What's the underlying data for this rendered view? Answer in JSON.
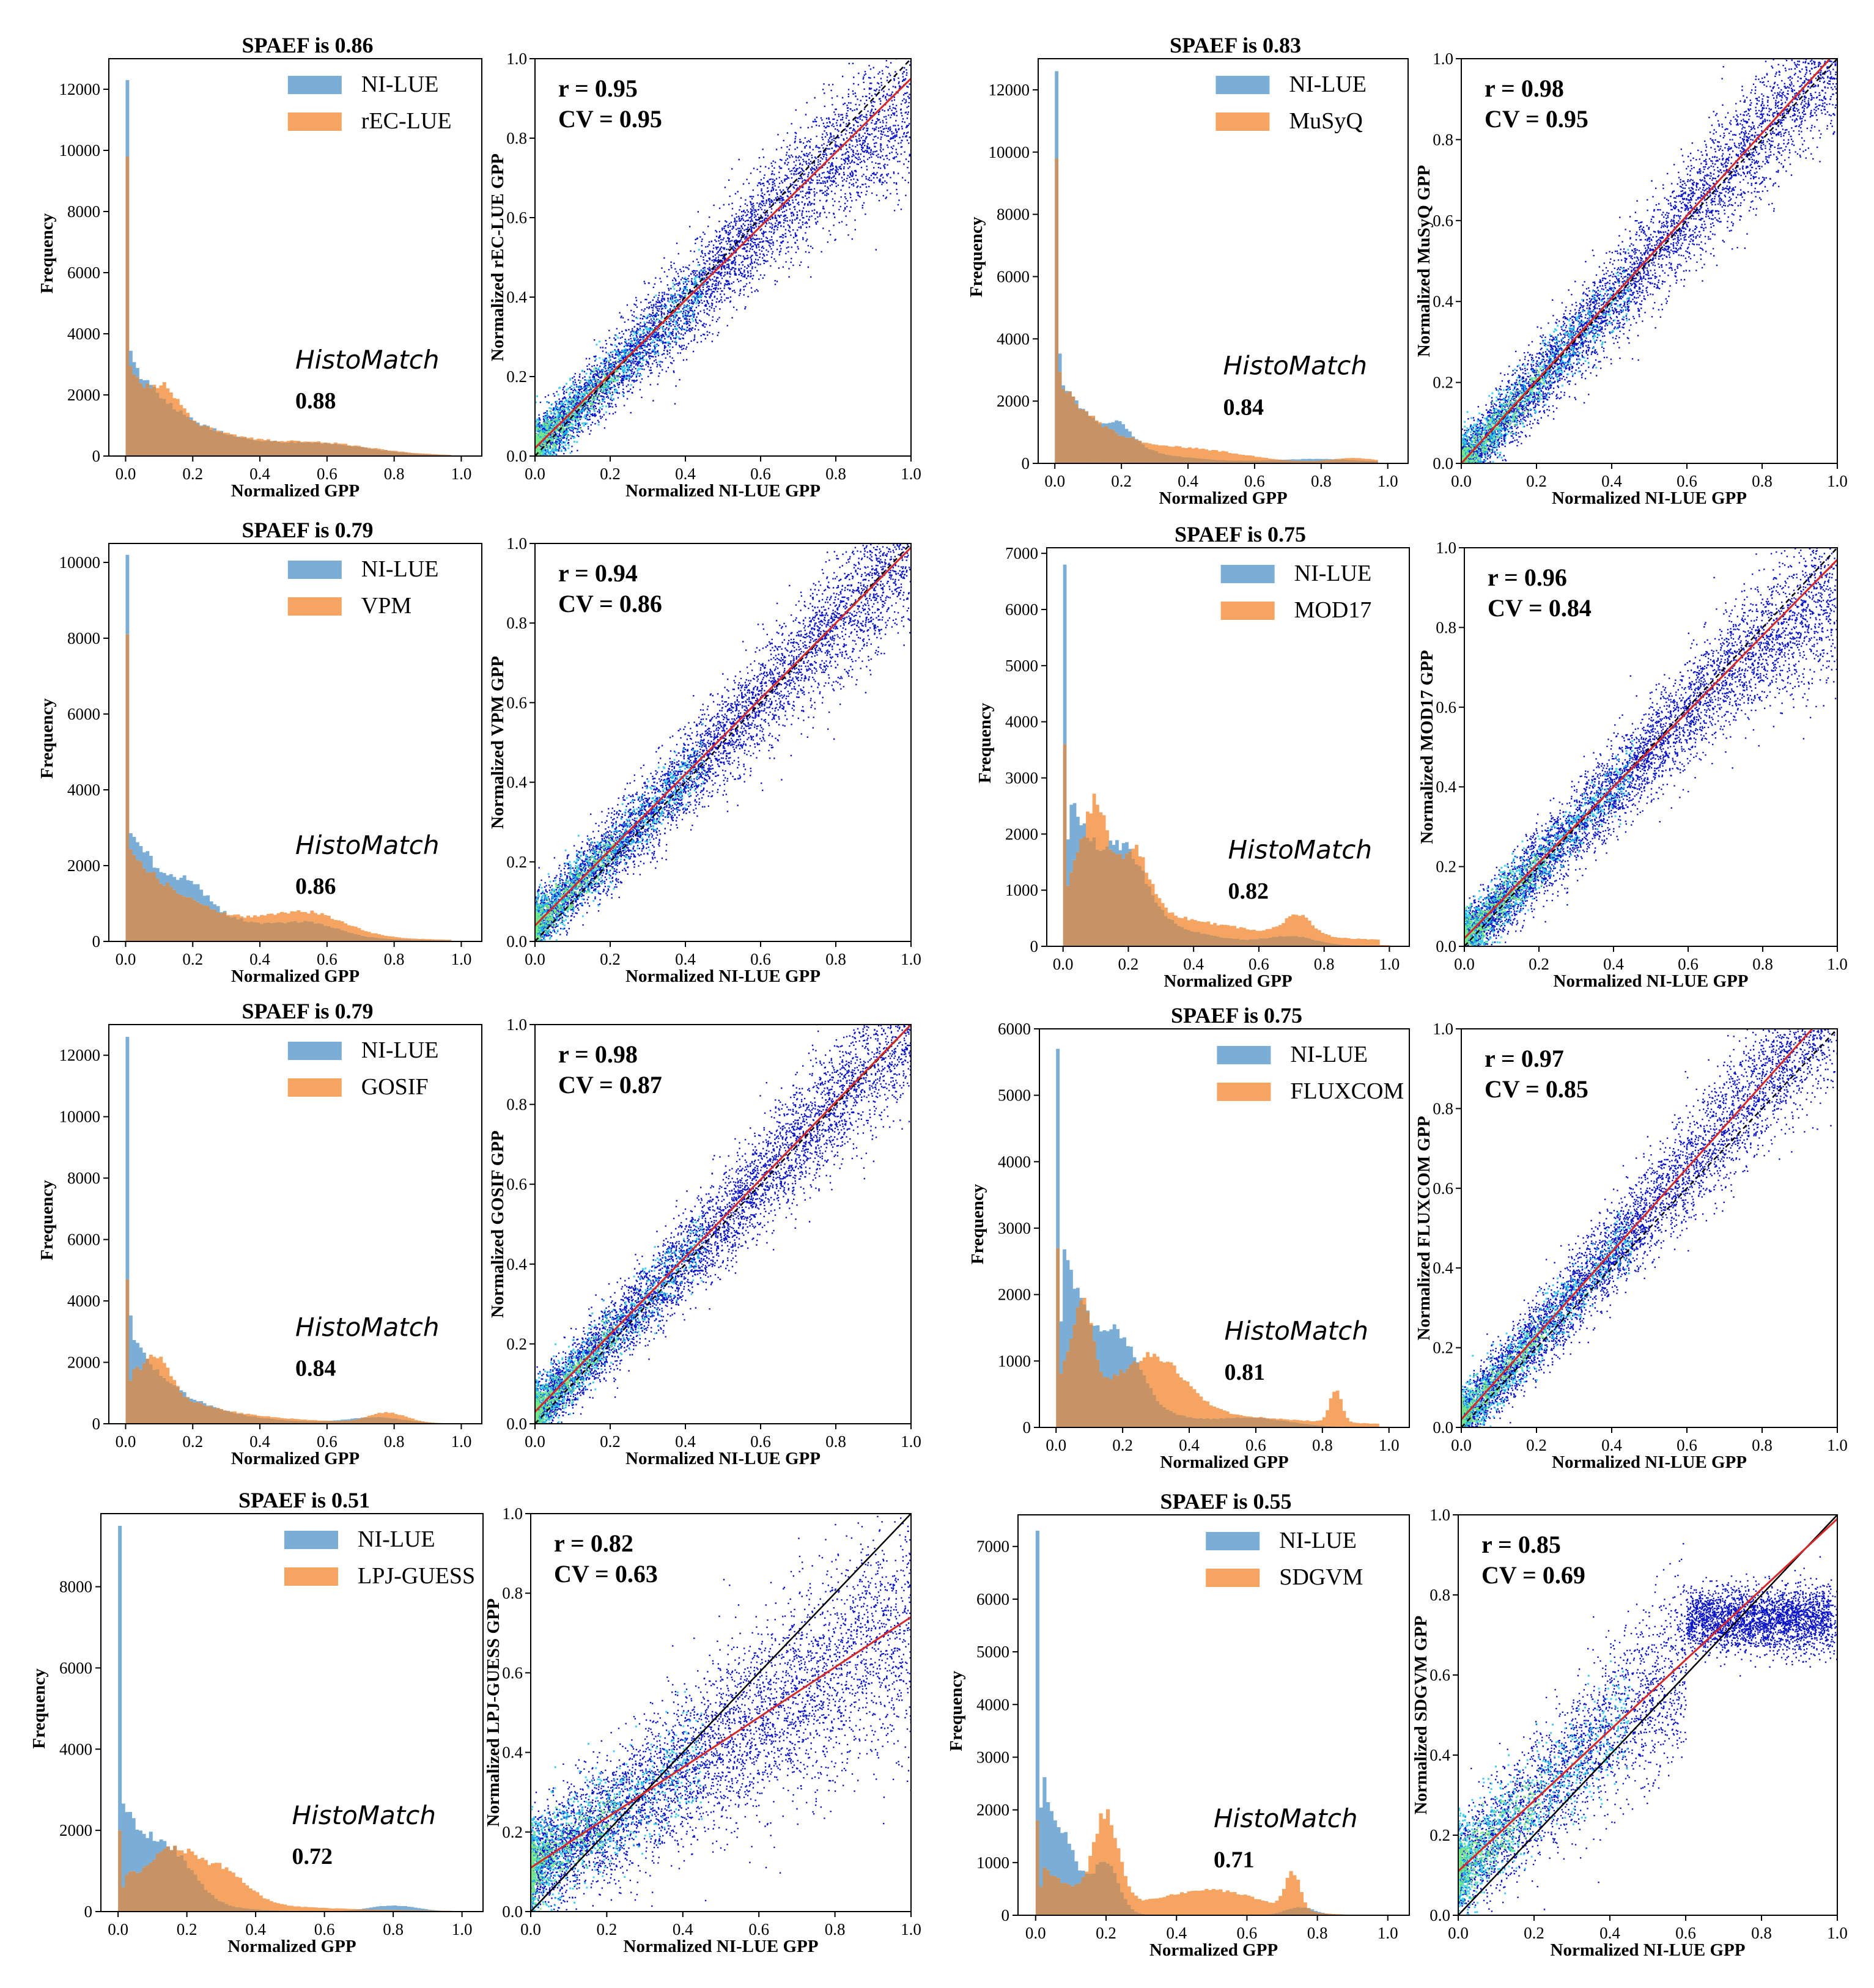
{
  "colors": {
    "ni_lue": "#7aaed6",
    "model": "#f6a461",
    "overlap": "#c89364",
    "fit_line": "#d62728",
    "one_to_one": "#000000",
    "scatter": "#0a14c8",
    "density_high": "#7ef07a",
    "density_mid": "#20c8e8"
  },
  "chart_data": [
    {
      "id": "rec-lue",
      "type": "bar",
      "title": "SPAEF is 0.86",
      "histogram": {
        "series": [
          {
            "name": "NI-LUE"
          },
          {
            "name": "rEC-LUE"
          }
        ],
        "xlabel": "Normalized GPP",
        "ylabel": "Frequency",
        "xlim": [
          0,
          1.0
        ],
        "ylim": [
          0,
          13000
        ],
        "xticks": [
          "0.0",
          "0.2",
          "0.4",
          "0.6",
          "0.8",
          "1.0"
        ],
        "yticks": [
          0,
          2000,
          4000,
          6000,
          8000,
          10000,
          12000
        ],
        "peak_ni": 12300,
        "peak_model": 9800,
        "label": "HistoMatch",
        "value": "0.88"
      },
      "scatter": {
        "type": "scatter",
        "xlabel": "Normalized NI-LUE GPP",
        "ylabel": "Normalized rEC-LUE GPP",
        "xlim": [
          0,
          1.0
        ],
        "ylim": [
          0,
          1.0
        ],
        "ticks": [
          "0.0",
          "0.2",
          "0.4",
          "0.6",
          "0.8",
          "1.0"
        ],
        "r": "r = 0.95",
        "cv": "CV = 0.95",
        "fit": {
          "slope": 0.93,
          "intercept": 0.02
        }
      }
    },
    {
      "id": "musyq",
      "type": "bar",
      "title": "SPAEF is 0.83",
      "histogram": {
        "series": [
          {
            "name": "NI-LUE"
          },
          {
            "name": "MuSyQ"
          }
        ],
        "xlabel": "Normalized GPP",
        "ylabel": "Frequency",
        "xlim": [
          0,
          1.0
        ],
        "ylim": [
          0,
          13000
        ],
        "xticks": [
          "0.0",
          "0.2",
          "0.4",
          "0.6",
          "0.8",
          "1.0"
        ],
        "yticks": [
          0,
          2000,
          4000,
          6000,
          8000,
          10000,
          12000
        ],
        "peak_ni": 12600,
        "peak_model": 9800,
        "label": "HistoMatch",
        "value": "0.84"
      },
      "scatter": {
        "type": "scatter",
        "xlabel": "Normalized NI-LUE GPP",
        "ylabel": "Normalized MuSyQ GPP",
        "xlim": [
          0,
          1.0
        ],
        "ylim": [
          0,
          1.0
        ],
        "ticks": [
          "0.0",
          "0.2",
          "0.4",
          "0.6",
          "0.8",
          "1.0"
        ],
        "r": "r = 0.98",
        "cv": "CV = 0.95",
        "fit": {
          "slope": 1.02,
          "intercept": 0.0
        }
      }
    },
    {
      "id": "vpm",
      "type": "bar",
      "title": "SPAEF is 0.79",
      "histogram": {
        "series": [
          {
            "name": "NI-LUE"
          },
          {
            "name": "VPM"
          }
        ],
        "xlabel": "Normalized GPP",
        "ylabel": "Frequency",
        "xlim": [
          0,
          1.0
        ],
        "ylim": [
          0,
          10500
        ],
        "xticks": [
          "0.0",
          "0.2",
          "0.4",
          "0.6",
          "0.8",
          "1.0"
        ],
        "yticks": [
          0,
          2000,
          4000,
          6000,
          8000,
          10000
        ],
        "peak_ni": 10200,
        "peak_model": 8100,
        "label": "HistoMatch",
        "value": "0.86"
      },
      "scatter": {
        "type": "scatter",
        "xlabel": "Normalized NI-LUE GPP",
        "ylabel": "Normalized VPM GPP",
        "xlim": [
          0,
          1.0
        ],
        "ylim": [
          0,
          1.0
        ],
        "ticks": [
          "0.0",
          "0.2",
          "0.4",
          "0.6",
          "0.8",
          "1.0"
        ],
        "r": "r = 0.94",
        "cv": "CV = 0.86",
        "fit": {
          "slope": 0.95,
          "intercept": 0.04
        }
      }
    },
    {
      "id": "mod17",
      "type": "bar",
      "title": "SPAEF is 0.75",
      "histogram": {
        "series": [
          {
            "name": "NI-LUE"
          },
          {
            "name": "MOD17"
          }
        ],
        "xlabel": "Normalized GPP",
        "ylabel": "Frequency",
        "xlim": [
          0,
          1.0
        ],
        "ylim": [
          0,
          7100
        ],
        "xticks": [
          "0.0",
          "0.2",
          "0.4",
          "0.6",
          "0.8",
          "1.0"
        ],
        "yticks": [
          0,
          1000,
          2000,
          3000,
          4000,
          5000,
          6000,
          7000
        ],
        "peak_ni": 6800,
        "peak_model": 3600,
        "label": "HistoMatch",
        "value": "0.82"
      },
      "scatter": {
        "type": "scatter",
        "xlabel": "Normalized NI-LUE GPP",
        "ylabel": "Normalized MOD17 GPP",
        "xlim": [
          0,
          1.0
        ],
        "ylim": [
          0,
          1.0
        ],
        "ticks": [
          "0.0",
          "0.2",
          "0.4",
          "0.6",
          "0.8",
          "1.0"
        ],
        "r": "r = 0.96",
        "cv": "CV = 0.84",
        "fit": {
          "slope": 0.95,
          "intercept": 0.02
        }
      }
    },
    {
      "id": "gosif",
      "type": "bar",
      "title": "SPAEF is 0.79",
      "histogram": {
        "series": [
          {
            "name": "NI-LUE"
          },
          {
            "name": "GOSIF"
          }
        ],
        "xlabel": "Normalized GPP",
        "ylabel": "Frequency",
        "xlim": [
          0,
          1.0
        ],
        "ylim": [
          0,
          13000
        ],
        "xticks": [
          "0.0",
          "0.2",
          "0.4",
          "0.6",
          "0.8",
          "1.0"
        ],
        "yticks": [
          0,
          2000,
          4000,
          6000,
          8000,
          10000,
          12000
        ],
        "peak_ni": 12600,
        "peak_model": 4700,
        "label": "HistoMatch",
        "value": "0.84"
      },
      "scatter": {
        "type": "scatter",
        "xlabel": "Normalized NI-LUE GPP",
        "ylabel": "Normalized GOSIF GPP",
        "xlim": [
          0,
          1.0
        ],
        "ylim": [
          0,
          1.0
        ],
        "ticks": [
          "0.0",
          "0.2",
          "0.4",
          "0.6",
          "0.8",
          "1.0"
        ],
        "r": "r = 0.98",
        "cv": "CV = 0.87",
        "fit": {
          "slope": 0.97,
          "intercept": 0.03
        }
      }
    },
    {
      "id": "fluxcom",
      "type": "bar",
      "title": "SPAEF is 0.75",
      "histogram": {
        "series": [
          {
            "name": "NI-LUE"
          },
          {
            "name": "FLUXCOM"
          }
        ],
        "xlabel": "Normalized GPP",
        "ylabel": "Frequency",
        "xlim": [
          0,
          1.0
        ],
        "ylim": [
          0,
          6000
        ],
        "xticks": [
          "0.0",
          "0.2",
          "0.4",
          "0.6",
          "0.8",
          "1.0"
        ],
        "yticks": [
          0,
          1000,
          2000,
          3000,
          4000,
          5000,
          6000
        ],
        "peak_ni": 5700,
        "peak_model": 2700,
        "label": "HistoMatch",
        "value": "0.81"
      },
      "scatter": {
        "type": "scatter",
        "xlabel": "Normalized NI-LUE GPP",
        "ylabel": "Normalized FLUXCOM GPP",
        "xlim": [
          0,
          1.0
        ],
        "ylim": [
          0,
          1.0
        ],
        "ticks": [
          "0.0",
          "0.2",
          "0.4",
          "0.6",
          "0.8",
          "1.0"
        ],
        "r": "r = 0.97",
        "cv": "CV = 0.85",
        "fit": {
          "slope": 1.05,
          "intercept": 0.02
        }
      }
    },
    {
      "id": "lpj-guess",
      "type": "bar",
      "title": "SPAEF is 0.51",
      "histogram": {
        "series": [
          {
            "name": "NI-LUE"
          },
          {
            "name": "LPJ-GUESS"
          }
        ],
        "xlabel": "Normalized GPP",
        "ylabel": "Frequency",
        "xlim": [
          0,
          1.0
        ],
        "ylim": [
          0,
          9800
        ],
        "xticks": [
          "0.0",
          "0.2",
          "0.4",
          "0.6",
          "0.8",
          "1.0"
        ],
        "yticks": [
          0,
          2000,
          4000,
          6000,
          8000
        ],
        "peak_ni": 9500,
        "peak_model": 2000,
        "label": "HistoMatch",
        "value": "0.72"
      },
      "scatter": {
        "type": "scatter",
        "xlabel": "Normalized NI-LUE GPP",
        "ylabel": "Normalized LPJ-GUESS GPP",
        "xlim": [
          0,
          1.0
        ],
        "ylim": [
          0,
          1.0
        ],
        "ticks": [
          "0.0",
          "0.2",
          "0.4",
          "0.6",
          "0.8",
          "1.0"
        ],
        "r": "r = 0.82",
        "cv": "CV = 0.63",
        "fit": {
          "slope": 0.63,
          "intercept": 0.11
        }
      }
    },
    {
      "id": "sdgvm",
      "type": "bar",
      "title": "SPAEF is 0.55",
      "histogram": {
        "series": [
          {
            "name": "NI-LUE"
          },
          {
            "name": "SDGVM"
          }
        ],
        "xlabel": "Normalized GPP",
        "ylabel": "Frequency",
        "xlim": [
          0,
          1.0
        ],
        "ylim": [
          0,
          7600
        ],
        "xticks": [
          "0.0",
          "0.2",
          "0.4",
          "0.6",
          "0.8",
          "1.0"
        ],
        "yticks": [
          0,
          1000,
          2000,
          3000,
          4000,
          5000,
          6000,
          7000
        ],
        "peak_ni": 7300,
        "peak_model": 1800,
        "label": "HistoMatch",
        "value": "0.71"
      },
      "scatter": {
        "type": "scatter",
        "xlabel": "Normalized NI-LUE GPP",
        "ylabel": "Normalized SDGVM GPP",
        "xlim": [
          0,
          1.0
        ],
        "ylim": [
          0,
          1.0
        ],
        "ticks": [
          "0.0",
          "0.2",
          "0.4",
          "0.6",
          "0.8",
          "1.0"
        ],
        "r": "r = 0.85",
        "cv": "CV = 0.69",
        "fit": {
          "slope": 0.88,
          "intercept": 0.11
        }
      }
    }
  ]
}
